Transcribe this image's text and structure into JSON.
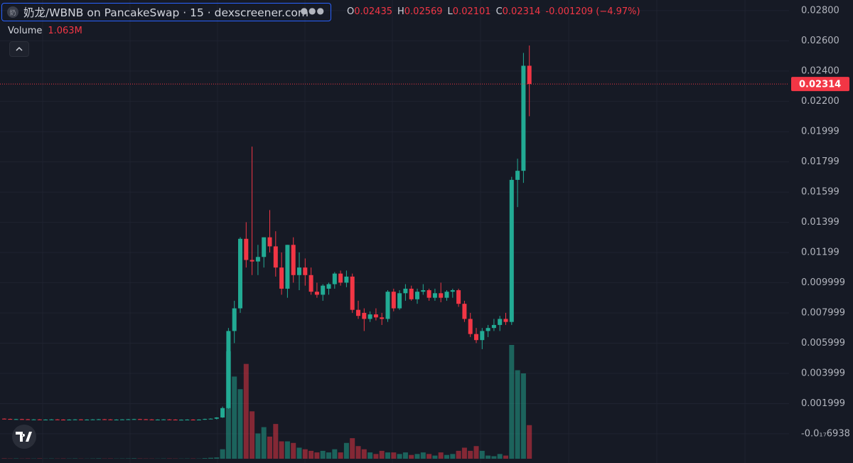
{
  "chart_data": {
    "type": "candlestick",
    "title": "奶龙/WBNB on PancakeSwap · 15 · dexscreener.com",
    "ohlc_legend": [
      {
        "label": "O",
        "value": "0.02435"
      },
      {
        "label": "H",
        "value": "0.02569"
      },
      {
        "label": "L",
        "value": "0.02101"
      },
      {
        "label": "C",
        "value": "0.02314"
      }
    ],
    "change": "-0.001209 (−4.97%)",
    "volume_label": "Volume",
    "volume_value": "1.063M",
    "last_price_label": "0.02314",
    "up_color": "#22ab94",
    "down_color": "#f23645",
    "grid": true,
    "ylim": [
      -0.00165,
      0.0287
    ],
    "yticks": [
      {
        "value": 0.028,
        "label": "0.02800"
      },
      {
        "value": 0.026,
        "label": "0.02600"
      },
      {
        "value": 0.024,
        "label": "0.02400"
      },
      {
        "value": 0.022,
        "label": "0.02200"
      },
      0.01999,
      0.01799,
      0.01599,
      0.01399,
      0.01199,
      0.009999,
      0.007999,
      0.005999,
      0.003999,
      0.001999,
      {
        "value": -6.938e-19,
        "label": "-0.0₁₇6938"
      }
    ],
    "categories": [
      null,
      null,
      null,
      null,
      null,
      null,
      null,
      null,
      null,
      null,
      null,
      null,
      null,
      null,
      null,
      null,
      null,
      null,
      null,
      null,
      null,
      null,
      null,
      null,
      null,
      null,
      null,
      null,
      null,
      null,
      null,
      null,
      null,
      null,
      null,
      null,
      null,
      null,
      null,
      null,
      null,
      null,
      null,
      null,
      null,
      null,
      null,
      null,
      null,
      null,
      null,
      null,
      null,
      null,
      null,
      null,
      null,
      null,
      null,
      null,
      null,
      null,
      null,
      null,
      null,
      null,
      null,
      null,
      null,
      null,
      null,
      null,
      null,
      null,
      null,
      null,
      null,
      null,
      null,
      null,
      null,
      null,
      null,
      null,
      null,
      null,
      null,
      null,
      null,
      null
    ],
    "open": [
      0.001,
      0.00098,
      0.00097,
      0.00097,
      0.00096,
      0.00095,
      0.00095,
      0.00094,
      0.00094,
      0.00095,
      0.00094,
      0.00093,
      0.00094,
      0.00095,
      0.00094,
      0.00094,
      0.00095,
      0.00096,
      0.00095,
      0.00094,
      0.00094,
      0.00095,
      0.00096,
      0.00097,
      0.00096,
      0.00095,
      0.00094,
      0.00094,
      0.00095,
      0.00094,
      0.00093,
      0.00093,
      0.00094,
      0.00093,
      0.00094,
      0.00098,
      0.001,
      0.00108,
      0.0017,
      0.0068,
      0.0083,
      0.0129,
      0.0115,
      0.0114,
      0.0117,
      0.013,
      0.0124,
      0.011,
      0.0096,
      0.0125,
      0.0105,
      0.011,
      0.0105,
      0.0094,
      0.0092,
      0.0096,
      0.0099,
      0.0106,
      0.01,
      0.0104,
      0.0082,
      0.008,
      0.0076,
      0.0079,
      0.0077,
      0.0076,
      0.0094,
      0.0083,
      0.0093,
      0.0096,
      0.0089,
      0.0094,
      0.0095,
      0.009,
      0.0093,
      0.009,
      0.0094,
      0.0095,
      0.0086,
      0.0076,
      0.0066,
      0.0062,
      0.0068,
      0.007,
      0.0072,
      0.0076,
      0.0074,
      0.0168,
      0.0174,
      0.02435
    ],
    "high": [
      0.00102,
      0.001,
      0.00099,
      0.00099,
      0.00098,
      0.00097,
      0.00097,
      0.00096,
      0.00097,
      0.00097,
      0.00096,
      0.00096,
      0.00097,
      0.00097,
      0.00096,
      0.00097,
      0.00098,
      0.00098,
      0.00097,
      0.00096,
      0.00097,
      0.00098,
      0.00099,
      0.00099,
      0.00098,
      0.00097,
      0.00096,
      0.00097,
      0.00097,
      0.00096,
      0.00095,
      0.00096,
      0.00096,
      0.00096,
      0.001,
      0.00102,
      0.0011,
      0.0018,
      0.007,
      0.0088,
      0.013,
      0.014,
      0.019,
      0.0125,
      0.013,
      0.0148,
      0.0134,
      0.012,
      0.0125,
      0.013,
      0.012,
      0.0116,
      0.011,
      0.01,
      0.0099,
      0.01,
      0.0107,
      0.0108,
      0.0108,
      0.0106,
      0.0088,
      0.0083,
      0.0081,
      0.0083,
      0.008,
      0.0095,
      0.0096,
      0.0095,
      0.0099,
      0.0098,
      0.0096,
      0.0099,
      0.0096,
      0.0096,
      0.01,
      0.0095,
      0.0096,
      0.0096,
      0.0088,
      0.008,
      0.007,
      0.007,
      0.0072,
      0.0076,
      0.0078,
      0.008,
      0.017,
      0.0182,
      0.0252,
      0.02569
    ],
    "low": [
      0.00096,
      0.00095,
      0.00095,
      0.00094,
      0.00093,
      0.00093,
      0.00092,
      0.00092,
      0.00092,
      0.00092,
      0.00091,
      0.00091,
      0.00092,
      0.00092,
      0.00092,
      0.00092,
      0.00093,
      0.00093,
      0.00092,
      0.00092,
      0.00092,
      0.00093,
      0.00094,
      0.00094,
      0.00093,
      0.00092,
      0.00092,
      0.00092,
      0.00092,
      0.00091,
      0.00091,
      0.00091,
      0.00091,
      0.00091,
      0.00092,
      0.00096,
      0.00095,
      0.00105,
      0.00165,
      0.006,
      0.008,
      0.011,
      0.0105,
      0.0105,
      0.011,
      0.012,
      0.0104,
      0.0092,
      0.009,
      0.01,
      0.0095,
      0.0098,
      0.0092,
      0.009,
      0.0088,
      0.0092,
      0.0096,
      0.0098,
      0.0097,
      0.008,
      0.0076,
      0.0068,
      0.0074,
      0.0075,
      0.0072,
      0.0074,
      0.0081,
      0.0082,
      0.0088,
      0.0088,
      0.0086,
      0.0092,
      0.0088,
      0.0088,
      0.0087,
      0.0088,
      0.009,
      0.0084,
      0.0074,
      0.0064,
      0.006,
      0.0056,
      0.0064,
      0.0068,
      0.0068,
      0.0072,
      0.0072,
      0.015,
      0.0166,
      0.02101
    ],
    "close": [
      0.00098,
      0.00097,
      0.00097,
      0.00096,
      0.00095,
      0.00095,
      0.00094,
      0.00094,
      0.00095,
      0.00094,
      0.00093,
      0.00094,
      0.00095,
      0.00094,
      0.00094,
      0.00095,
      0.00096,
      0.00095,
      0.00094,
      0.00094,
      0.00095,
      0.00096,
      0.00097,
      0.00096,
      0.00095,
      0.00094,
      0.00094,
      0.00095,
      0.00094,
      0.00093,
      0.00093,
      0.00094,
      0.00093,
      0.00094,
      0.00098,
      0.001,
      0.00108,
      0.0017,
      0.0068,
      0.0083,
      0.0129,
      0.0115,
      0.0114,
      0.0117,
      0.013,
      0.0124,
      0.011,
      0.0096,
      0.0125,
      0.0105,
      0.011,
      0.0105,
      0.0094,
      0.0092,
      0.0098,
      0.0099,
      0.0106,
      0.01,
      0.0104,
      0.0082,
      0.0078,
      0.0076,
      0.0079,
      0.0077,
      0.0076,
      0.0094,
      0.0083,
      0.0093,
      0.0096,
      0.0089,
      0.0094,
      0.0095,
      0.009,
      0.0093,
      0.009,
      0.0094,
      0.0095,
      0.0086,
      0.0076,
      0.0066,
      0.0062,
      0.0068,
      0.007,
      0.0072,
      0.0076,
      0.0074,
      0.0168,
      0.0174,
      0.02435,
      0.02314
    ],
    "volume": [
      12000,
      8000,
      10000,
      6000,
      9000,
      7000,
      11000,
      5000,
      8000,
      6000,
      9000,
      7000,
      10000,
      6000,
      5000,
      8000,
      12000,
      7000,
      9000,
      6000,
      8000,
      10000,
      14000,
      9000,
      7000,
      6000,
      5000,
      8000,
      9000,
      7000,
      6000,
      8000,
      9000,
      7000,
      20000,
      30000,
      40000,
      300000,
      3400000,
      2600000,
      2200000,
      3000000,
      1500000,
      800000,
      1000000,
      700000,
      1100000,
      550000,
      550000,
      500000,
      350000,
      300000,
      250000,
      200000,
      250000,
      200000,
      300000,
      200000,
      500000,
      650000,
      400000,
      300000,
      200000,
      150000,
      250000,
      200000,
      200000,
      150000,
      200000,
      120000,
      150000,
      200000,
      150000,
      100000,
      200000,
      120000,
      150000,
      250000,
      350000,
      250000,
      400000,
      250000,
      100000,
      80000,
      150000,
      100000,
      3600000,
      2800000,
      2700000,
      1063000
    ]
  }
}
